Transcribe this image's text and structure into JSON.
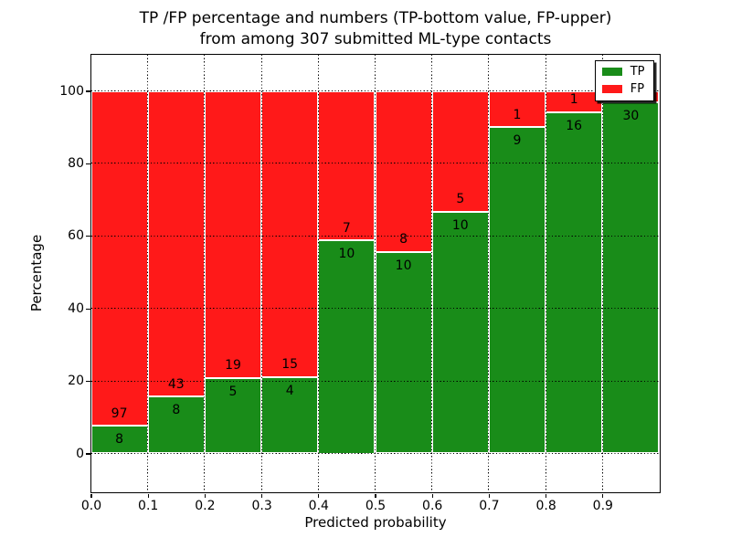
{
  "title": {
    "line1": "TP /FP percentage and numbers (TP-bottom value, FP-upper)",
    "line2": "from among 307 submitted ML-type contacts"
  },
  "chart_data": {
    "type": "bar",
    "stacked": true,
    "title": "TP /FP percentage and numbers (TP-bottom value, FP-upper) from among 307 submitted ML-type contacts",
    "xlabel": "Predicted probability",
    "ylabel": "Percentage",
    "total_contacts": 307,
    "bins": [
      "0.0-0.1",
      "0.1-0.2",
      "0.2-0.3",
      "0.3-0.4",
      "0.4-0.5",
      "0.5-0.6",
      "0.6-0.7",
      "0.7-0.8",
      "0.8-0.9",
      "0.9-1.0"
    ],
    "series": [
      {
        "name": "TP",
        "color": "#198c19",
        "counts": [
          8,
          8,
          5,
          4,
          10,
          10,
          10,
          9,
          16,
          30
        ]
      },
      {
        "name": "FP",
        "color": "#ff1919",
        "counts": [
          97,
          43,
          19,
          15,
          7,
          8,
          5,
          1,
          1,
          1
        ]
      }
    ],
    "tp_percent": [
      7.6,
      15.7,
      20.8,
      21.1,
      58.8,
      55.6,
      66.7,
      90.0,
      94.1,
      96.8
    ],
    "xticks": [
      "0.0",
      "0.1",
      "0.2",
      "0.3",
      "0.4",
      "0.5",
      "0.6",
      "0.7",
      "0.8",
      "0.9"
    ],
    "yticks": [
      0,
      20,
      40,
      60,
      80,
      100
    ],
    "xlim": [
      0.0,
      1.0
    ],
    "ylim": [
      -10.5,
      110.1
    ],
    "grid": "dotted-black-on-top",
    "bar_edge_color": "#ffffff",
    "legend": {
      "position": "upper right",
      "entries": [
        {
          "label": "TP",
          "color": "#198c19"
        },
        {
          "label": "FP",
          "color": "#ff1919"
        }
      ]
    }
  }
}
